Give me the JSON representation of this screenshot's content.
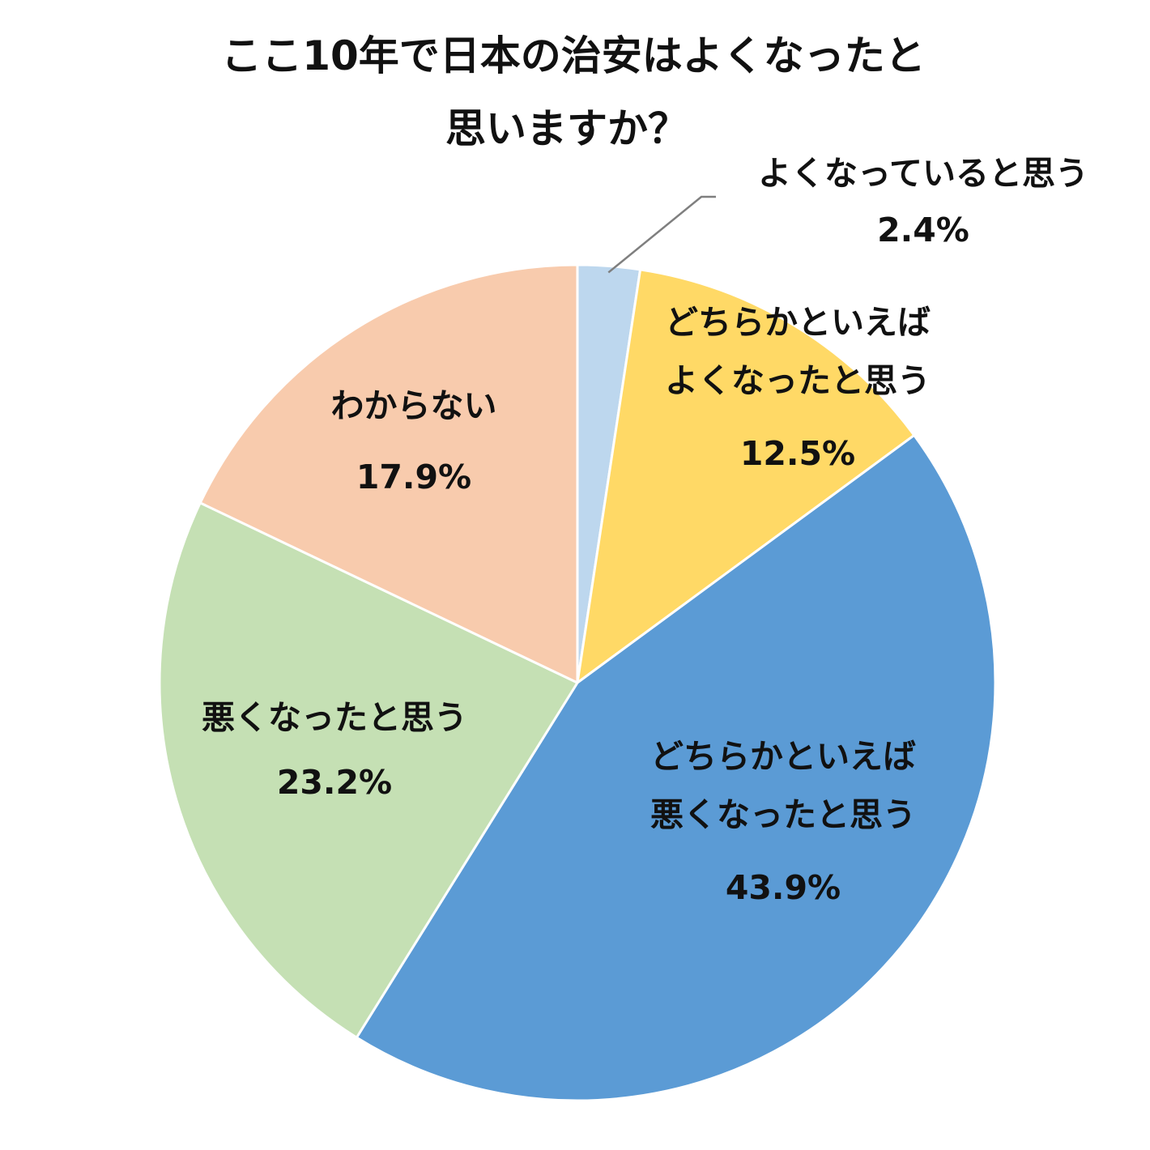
{
  "chart_data": {
    "type": "pie",
    "title_lines": [
      "ここ10年で日本の治安はよくなったと",
      "思いますか？"
    ],
    "start_angle_deg": 0,
    "direction": "clockwise",
    "slices": [
      {
        "label_lines": [
          "よくなっていると思う"
        ],
        "value": 2.4,
        "value_label": "2.4%",
        "color": "#BDD7EE",
        "label_placement": "outside-callout"
      },
      {
        "label_lines": [
          "どちらかといえば",
          "よくなったと思う"
        ],
        "value": 12.5,
        "value_label": "12.5%",
        "color": "#FFD966",
        "label_placement": "inside"
      },
      {
        "label_lines": [
          "どちらかといえば",
          "悪くなったと思う"
        ],
        "value": 43.9,
        "value_label": "43.9%",
        "color": "#5B9BD5",
        "label_placement": "inside"
      },
      {
        "label_lines": [
          "悪くなったと思う"
        ],
        "value": 23.2,
        "value_label": "23.2%",
        "color": "#C5E0B4",
        "label_placement": "inside"
      },
      {
        "label_lines": [
          "わからない"
        ],
        "value": 17.9,
        "value_label": "17.9%",
        "color": "#F8CBAD",
        "label_placement": "inside"
      }
    ],
    "legend": "none",
    "border_color": "#ffffff",
    "callout_line_color": "#7f7f7f"
  }
}
